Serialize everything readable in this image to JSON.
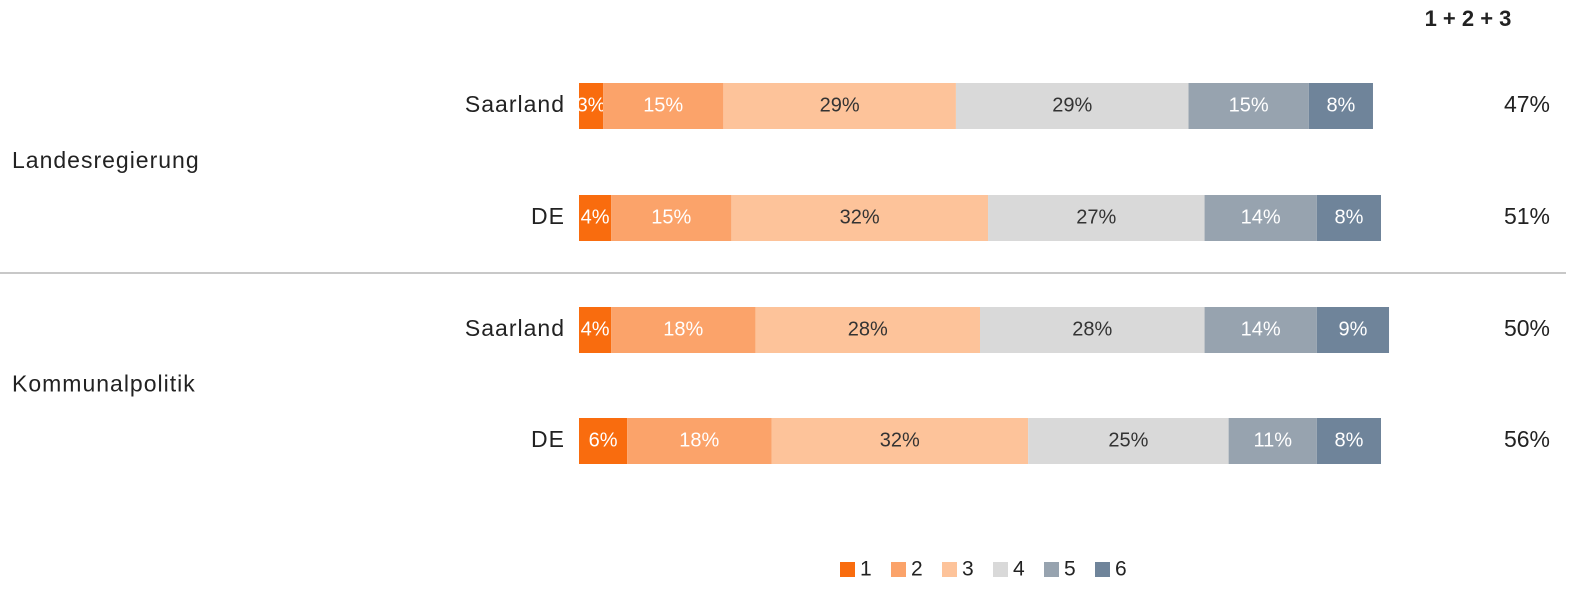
{
  "chart_data": {
    "type": "stacked-bar-horizontal",
    "groups": [
      "Landesregierung",
      "Kommunalpolitik"
    ],
    "categories": [
      "Saarland",
      "DE",
      "Saarland",
      "DE"
    ],
    "xlim": [
      0,
      100
    ],
    "series": [
      {
        "name": "1",
        "color": "#f96c0e",
        "values": [
          3,
          4,
          4,
          6
        ],
        "value_labels": [
          "3%",
          "4%",
          "4%",
          "6%"
        ]
      },
      {
        "name": "2",
        "color": "#fba36a",
        "values": [
          15,
          15,
          18,
          18
        ],
        "value_labels": [
          "15%",
          "15%",
          "18%",
          "18%"
        ]
      },
      {
        "name": "3",
        "color": "#fdc39a",
        "values": [
          29,
          32,
          28,
          32
        ],
        "value_labels": [
          "29%",
          "32%",
          "28%",
          "32%"
        ]
      },
      {
        "name": "4",
        "color": "#d9d9d9",
        "values": [
          29,
          27,
          28,
          25
        ],
        "value_labels": [
          "29%",
          "27%",
          "28%",
          "25%"
        ]
      },
      {
        "name": "5",
        "color": "#97a3af",
        "values": [
          15,
          14,
          14,
          11
        ],
        "value_labels": [
          "15%",
          "14%",
          "14%",
          "11%"
        ]
      },
      {
        "name": "6",
        "color": "#6f849a",
        "values": [
          8,
          8,
          9,
          8
        ],
        "value_labels": [
          "8%",
          "8%",
          "9%",
          "8%"
        ]
      }
    ],
    "totals": {
      "title": "1 + 2 + 3",
      "values": [
        47,
        51,
        50,
        56
      ],
      "value_labels": [
        "47%",
        "51%",
        "50%",
        "56%"
      ]
    }
  }
}
